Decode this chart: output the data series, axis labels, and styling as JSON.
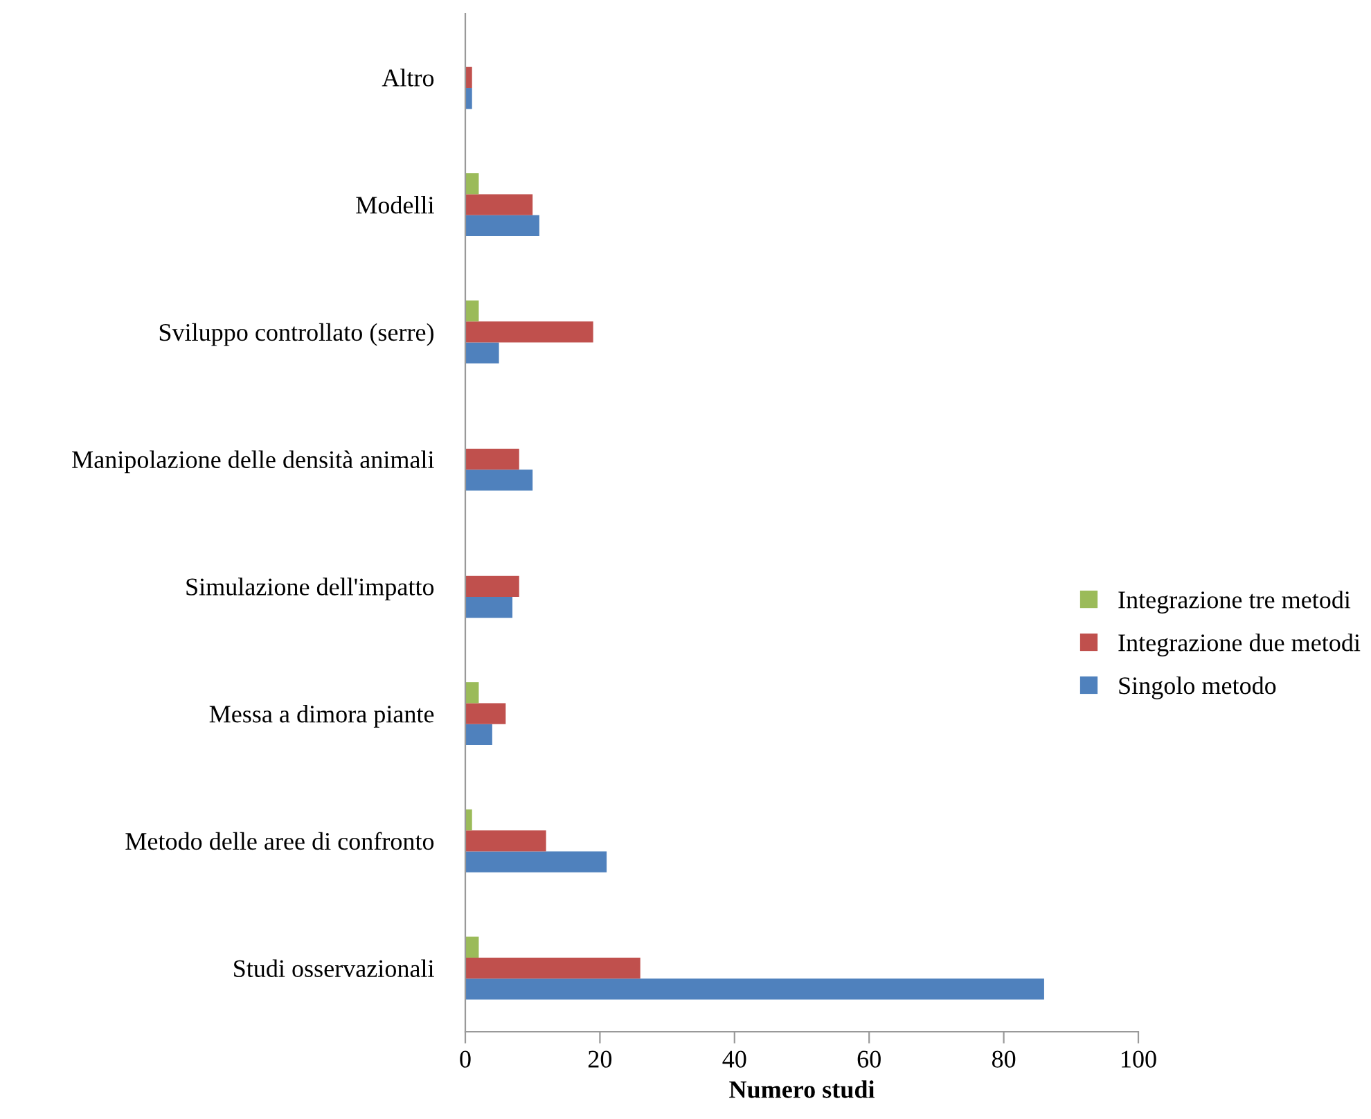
{
  "chart_data": {
    "type": "bar",
    "orientation": "horizontal",
    "xlabel": "Numero studi",
    "categories": [
      "Altro",
      "Modelli",
      "Sviluppo controllato (serre)",
      "Manipolazione delle densità animali",
      "Simulazione dell'impatto",
      "Messa a dimora piante",
      "Metodo delle aree di confronto",
      "Studi osservazionali"
    ],
    "series": [
      {
        "name": "Singolo metodo",
        "color": "#4f81bd",
        "values": [
          1,
          11,
          5,
          10,
          7,
          4,
          21,
          86
        ]
      },
      {
        "name": "Integrazione due metodi",
        "color": "#c0504d",
        "values": [
          1,
          10,
          19,
          8,
          8,
          6,
          12,
          26
        ]
      },
      {
        "name": "Integrazione tre metodi",
        "color": "#9bbb59",
        "values": [
          null,
          2,
          2,
          null,
          null,
          2,
          1,
          2
        ]
      }
    ],
    "xlim": [
      0,
      100
    ],
    "xticks": [
      0,
      20,
      40,
      60,
      80,
      100
    ],
    "grid": false,
    "legend": "right"
  }
}
